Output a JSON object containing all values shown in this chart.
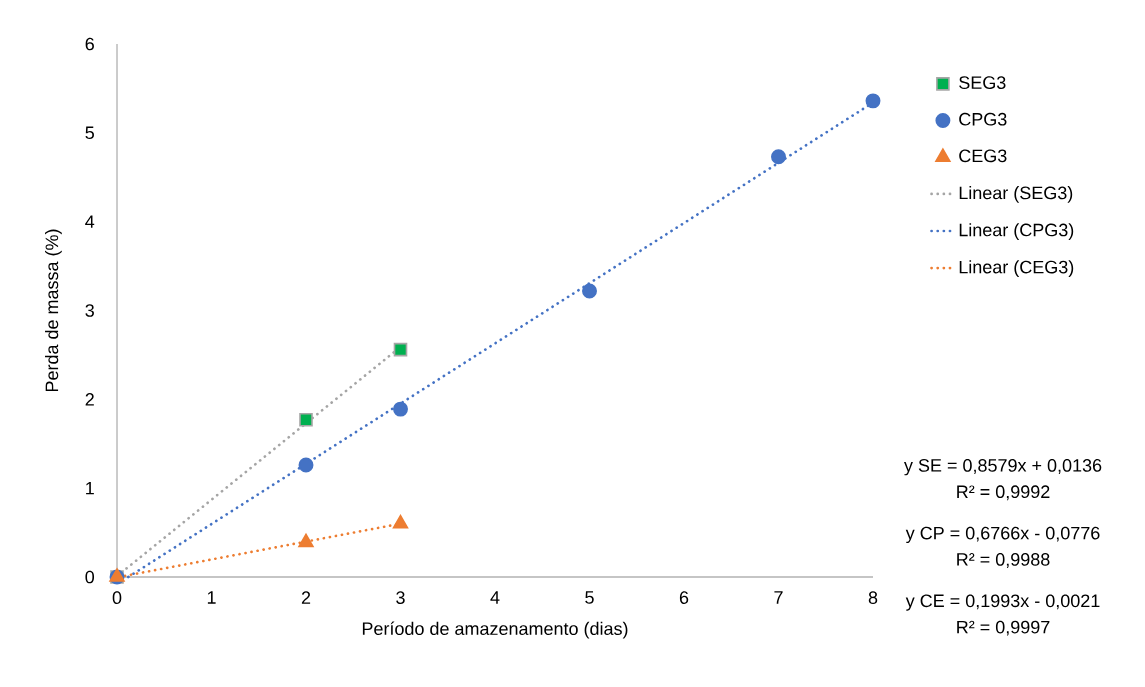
{
  "chart_data": {
    "type": "scatter",
    "xlabel": "Período de amazenamento (dias)",
    "ylabel": "Perda de massa (%)",
    "xlim": [
      0,
      8
    ],
    "ylim": [
      0,
      6
    ],
    "xticks": [
      0,
      1,
      2,
      3,
      4,
      5,
      6,
      7,
      8
    ],
    "yticks": [
      0,
      1,
      2,
      3,
      4,
      5,
      6
    ],
    "grid": false,
    "legend": "right",
    "series": [
      {
        "name": "SEG3",
        "marker": "square",
        "color": "#00b050",
        "x": [
          0,
          2,
          3
        ],
        "values": [
          0,
          1.77,
          2.56
        ]
      },
      {
        "name": "CPG3",
        "marker": "circle",
        "color": "#4472c4",
        "x": [
          0,
          2,
          3,
          5,
          7,
          8
        ],
        "values": [
          0,
          1.26,
          1.89,
          3.22,
          4.73,
          5.36
        ]
      },
      {
        "name": "CEG3",
        "marker": "triangle",
        "color": "#ed7d31",
        "x": [
          0,
          2,
          3
        ],
        "values": [
          0,
          0.39,
          0.6
        ]
      },
      {
        "name": "Linear (SEG3)",
        "type": "line",
        "marker": "none",
        "line_style": "dotted",
        "color": "#a5a5a5",
        "x": [
          0,
          3
        ],
        "values": [
          0.01,
          2.59
        ]
      },
      {
        "name": "Linear (CPG3)",
        "type": "line",
        "marker": "none",
        "line_style": "dotted",
        "color": "#4472c4",
        "x": [
          0.12,
          8
        ],
        "values": [
          0,
          5.34
        ]
      },
      {
        "name": "Linear (CEG3)",
        "type": "line",
        "marker": "none",
        "line_style": "dotted",
        "color": "#ed7d31",
        "x": [
          0.02,
          3
        ],
        "values": [
          0,
          0.6
        ]
      }
    ],
    "annotations": [
      "y SE = 0,8579x + 0,0136",
      "R² = 0,9992",
      "y CP = 0,6766x - 0,0776",
      "R² = 0,9988",
      "y CE = 0,1993x - 0,0021",
      "R² = 0,9997"
    ]
  }
}
